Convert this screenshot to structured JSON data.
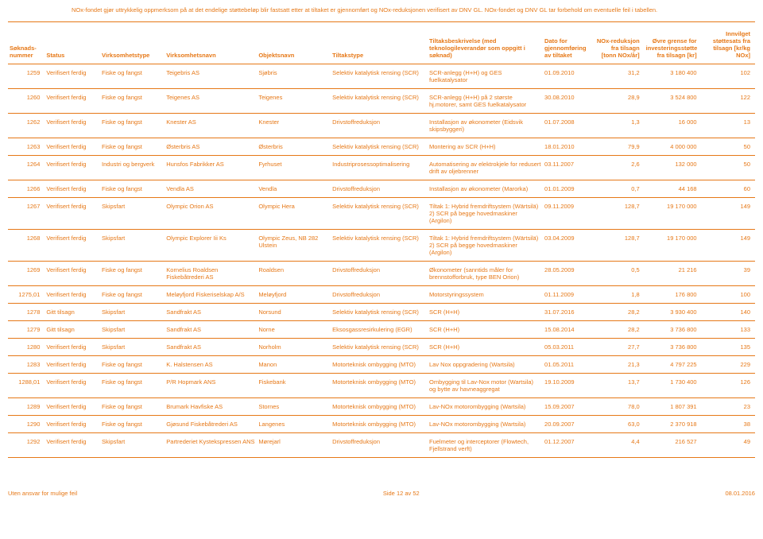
{
  "disclaimer": "NOx-fondet gjør uttrykkelig oppmerksom på at det endelige støttebeløp blir fastsatt etter at tiltaket er gjennomført og NOx-reduksjonen verifisert av DNV GL. NOx-fondet og DNV GL tar forbehold om eventuelle feil i tabellen.",
  "headers": {
    "soknads": "Søknads-\nnummer",
    "status": "Status",
    "vtype": "Virksomhetstype",
    "vnavn": "Virksomhetsnavn",
    "objekt": "Objektsnavn",
    "ttype": "Tiltakstype",
    "tbesk": "Tiltaksbeskrivelse (med teknologileverandør som oppgitt i søknad)",
    "dato": "Dato for gjennomføring av tiltaket",
    "nox": "NOx-reduksjon fra tilsagn [tonn NOx/år]",
    "ovre": "Øvre grense for investeringsstøtte fra tilsagn [kr]",
    "innv": "Innvilget støttesats fra tilsagn [kr/kg NOx]"
  },
  "rows": [
    {
      "n": "1259",
      "s": "Verifisert ferdig",
      "vt": "Fiske og fangst",
      "vn": "Teigebris AS",
      "o": "Sjøbris",
      "tt": "Selektiv katalytisk rensing (SCR)",
      "tb": "SCR-anlegg (H+H) og GES fuelkatalysator",
      "d": "01.09.2010",
      "nx": "31,2",
      "ov": "3 180 400",
      "iv": "102"
    },
    {
      "n": "1260",
      "s": "Verifisert ferdig",
      "vt": "Fiske og fangst",
      "vn": "Teigenes AS",
      "o": "Teigenes",
      "tt": "Selektiv katalytisk rensing (SCR)",
      "tb": "SCR-anlegg (H+H) på 2 største hj.motorer, samt GES fuelkatalysator",
      "d": "30.08.2010",
      "nx": "28,9",
      "ov": "3 524 800",
      "iv": "122"
    },
    {
      "n": "1262",
      "s": "Verifisert ferdig",
      "vt": "Fiske og fangst",
      "vn": "Knester AS",
      "o": "Knester",
      "tt": "Drivstoffreduksjon",
      "tb": "Installasjon av økonometer (Eidsvik skipsbyggeri)",
      "d": "01.07.2008",
      "nx": "1,3",
      "ov": "16 000",
      "iv": "13"
    },
    {
      "n": "1263",
      "s": "Verifisert ferdig",
      "vt": "Fiske og fangst",
      "vn": "Østerbris AS",
      "o": "Østerbris",
      "tt": "Selektiv katalytisk rensing (SCR)",
      "tb": "Montering av SCR (H+H)",
      "d": "18.01.2010",
      "nx": "79,9",
      "ov": "4 000 000",
      "iv": "50"
    },
    {
      "n": "1264",
      "s": "Verifisert ferdig",
      "vt": "Industri og bergverk",
      "vn": "Hunsfos Fabrikker AS",
      "o": "Fyrhuset",
      "tt": "Industriprosessoptimalisering",
      "tb": "Automatisering av elektrokjele for redusert drift av oljebrenner",
      "d": "03.11.2007",
      "nx": "2,6",
      "ov": "132 000",
      "iv": "50"
    },
    {
      "n": "1266",
      "s": "Verifisert ferdig",
      "vt": "Fiske og fangst",
      "vn": "Vendla AS",
      "o": "Vendla",
      "tt": "Drivstoffreduksjon",
      "tb": "Installasjon av økonometer (Marorka)",
      "d": "01.01.2009",
      "nx": "0,7",
      "ov": "44 168",
      "iv": "60"
    },
    {
      "n": "1267",
      "s": "Verifisert ferdig",
      "vt": "Skipsfart",
      "vn": "Olympic Orion AS",
      "o": "Olympic Hera",
      "tt": "Selektiv katalytisk rensing (SCR)",
      "tb": "Tiltak 1: Hybrid fremdriftsystem (Wärtsilä) 2) SCR på begge hovedmaskiner (Argilon)",
      "d": "09.11.2009",
      "nx": "128,7",
      "ov": "19 170 000",
      "iv": "149"
    },
    {
      "n": "1268",
      "s": "Verifisert ferdig",
      "vt": "Skipsfart",
      "vn": "Olympic Explorer Iii Ks",
      "o": "Olympic Zeus, NB 282 Ulstein",
      "tt": "Selektiv katalytisk rensing (SCR)",
      "tb": "Tiltak 1: Hybrid fremdriftsystem (Wärtsilä) 2) SCR på begge hovedmaskiner (Argilon)",
      "d": "03.04.2009",
      "nx": "128,7",
      "ov": "19 170 000",
      "iv": "149"
    },
    {
      "n": "1269",
      "s": "Verifisert ferdig",
      "vt": "Fiske og fangst",
      "vn": "Kornelius Roaldsen Fiskebåtrederi AS",
      "o": "Roaldsen",
      "tt": "Drivstoffreduksjon",
      "tb": "Økonometer (sanntids måler for brennstofforbruk, type BEN Orion)",
      "d": "28.05.2009",
      "nx": "0,5",
      "ov": "21 216",
      "iv": "39"
    },
    {
      "n": "1275,01",
      "s": "Verifisert ferdig",
      "vt": "Fiske og fangst",
      "vn": "Meløyfjord Fiskeriselskap A/S",
      "o": "Meløyfjord",
      "tt": "Drivstoffreduksjon",
      "tb": "Motorstyringssystem",
      "d": "01.11.2009",
      "nx": "1,8",
      "ov": "176 800",
      "iv": "100"
    },
    {
      "n": "1278",
      "s": "Gitt tilsagn",
      "vt": "Skipsfart",
      "vn": "Sandfrakt AS",
      "o": "Norsund",
      "tt": "Selektiv katalytisk rensing (SCR)",
      "tb": "SCR (H+H)",
      "d": "31.07.2016",
      "nx": "28,2",
      "ov": "3 930 400",
      "iv": "140"
    },
    {
      "n": "1279",
      "s": "Gitt tilsagn",
      "vt": "Skipsfart",
      "vn": "Sandfrakt AS",
      "o": "Norne",
      "tt": "Eksosgassresirkulering (EGR)",
      "tb": "SCR (H+H)",
      "d": "15.08.2014",
      "nx": "28,2",
      "ov": "3 736 800",
      "iv": "133"
    },
    {
      "n": "1280",
      "s": "Verifisert ferdig",
      "vt": "Skipsfart",
      "vn": "Sandfrakt AS",
      "o": "Norholm",
      "tt": "Selektiv katalytisk rensing (SCR)",
      "tb": "SCR (H+H)",
      "d": "05.03.2011",
      "nx": "27,7",
      "ov": "3 736 800",
      "iv": "135"
    },
    {
      "n": "1283",
      "s": "Verifisert ferdig",
      "vt": "Fiske og fangst",
      "vn": "K. Halstensen AS",
      "o": "Manon",
      "tt": "Motorteknisk ombygging (MTO)",
      "tb": "Lav Nox oppgradering (Wartsila)",
      "d": "01.05.2011",
      "nx": "21,3",
      "ov": "4 797 225",
      "iv": "229"
    },
    {
      "n": "1288,01",
      "s": "Verifisert ferdig",
      "vt": "Fiske og fangst",
      "vn": "P/R Hopmark ANS",
      "o": "Fiskebank",
      "tt": "Motorteknisk ombygging (MTO)",
      "tb": "Ombygging til Lav-Nox motor (Wartsila) og bytte av havneaggregat",
      "d": "19.10.2009",
      "nx": "13,7",
      "ov": "1 730 400",
      "iv": "126"
    },
    {
      "n": "1289",
      "s": "Verifisert ferdig",
      "vt": "Fiske og fangst",
      "vn": "Brumark Havfiske AS",
      "o": "Stornes",
      "tt": "Motorteknisk ombygging (MTO)",
      "tb": "Lav-NOx motorombygging (Wartsila)",
      "d": "15.09.2007",
      "nx": "78,0",
      "ov": "1 807 391",
      "iv": "23"
    },
    {
      "n": "1290",
      "s": "Verifisert ferdig",
      "vt": "Fiske og fangst",
      "vn": "Gjøsund Fiskebåtrederi AS",
      "o": "Langenes",
      "tt": "Motorteknisk ombygging (MTO)",
      "tb": "Lav-NOx motorombygging (Wartsila)",
      "d": "20.09.2007",
      "nx": "63,0",
      "ov": "2 370 918",
      "iv": "38"
    },
    {
      "n": "1292",
      "s": "Verifisert ferdig",
      "vt": "Skipsfart",
      "vn": "Partrederiet Kystekspressen ANS",
      "o": "Mørejarl",
      "tt": "Drivstoffreduksjon",
      "tb": "Fuelmeter og interceptorer (Flowtech, Fjellstrand verft)",
      "d": "01.12.2007",
      "nx": "4,4",
      "ov": "216 527",
      "iv": "49"
    }
  ],
  "footer": {
    "left": "Uten ansvar for mulige feil",
    "center": "Side 12 av 52",
    "right": "08.01.2016"
  }
}
